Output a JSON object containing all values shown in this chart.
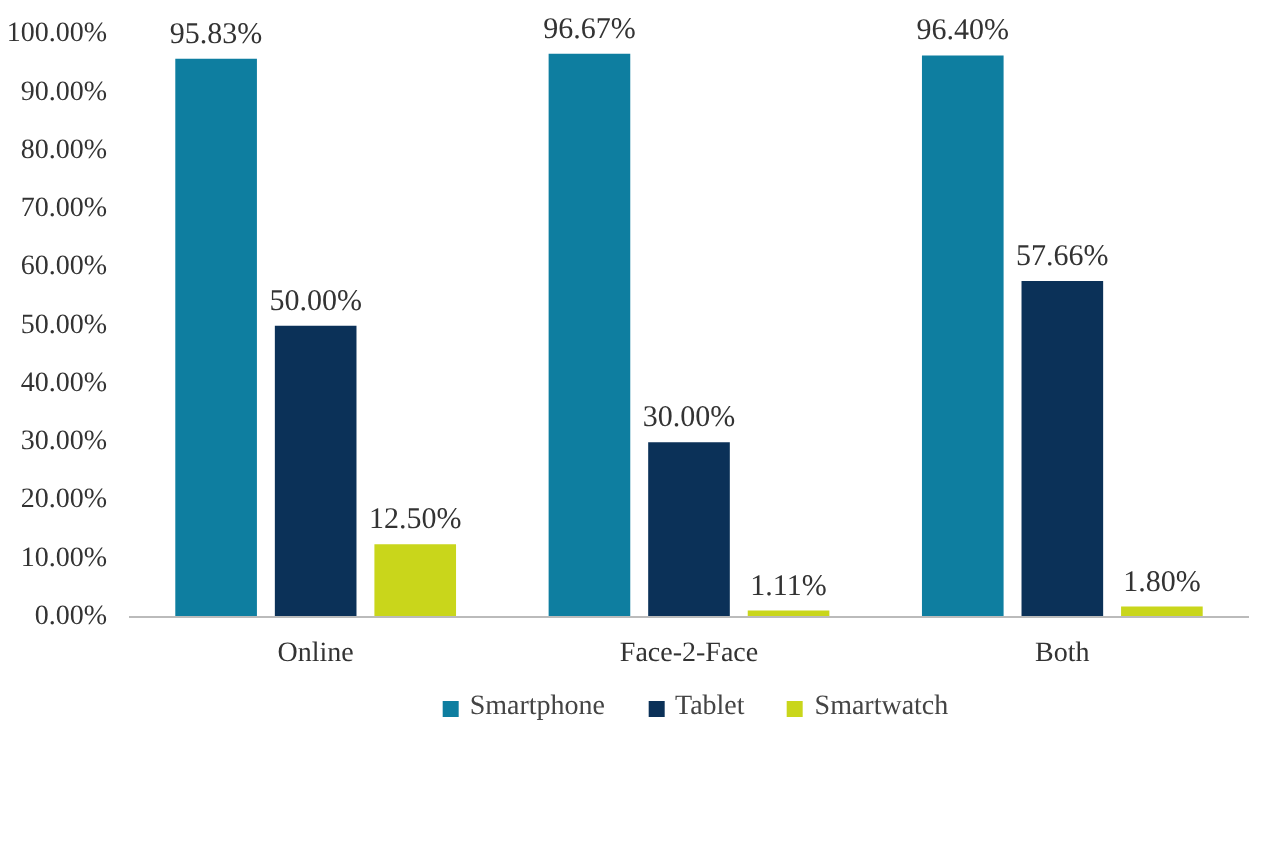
{
  "chart_data": {
    "type": "bar",
    "categories": [
      "Online",
      "Face-2-Face",
      "Both"
    ],
    "series": [
      {
        "name": "Smartphone",
        "color": "#0e7ea0",
        "values": [
          95.83,
          96.67,
          96.4
        ],
        "value_labels": [
          "95.83%",
          "96.67%",
          "96.40%"
        ]
      },
      {
        "name": "Tablet",
        "color": "#0b3158",
        "values": [
          50.0,
          30.0,
          57.66
        ],
        "value_labels": [
          "50.00%",
          "30.00%",
          "57.66%"
        ]
      },
      {
        "name": "Smartwatch",
        "color": "#c9d61b",
        "values": [
          12.5,
          1.11,
          1.8
        ],
        "value_labels": [
          "12.50%",
          "1.11%",
          "1.80%"
        ]
      }
    ],
    "ylim": [
      0,
      100
    ],
    "yticks": [
      {
        "value": 0,
        "label": "0.00%"
      },
      {
        "value": 10,
        "label": "10.00%"
      },
      {
        "value": 20,
        "label": "20.00%"
      },
      {
        "value": 30,
        "label": "30.00%"
      },
      {
        "value": 40,
        "label": "40.00%"
      },
      {
        "value": 50,
        "label": "50.00%"
      },
      {
        "value": 60,
        "label": "60.00%"
      },
      {
        "value": 70,
        "label": "70.00%"
      },
      {
        "value": 80,
        "label": "80.00%"
      },
      {
        "value": 90,
        "label": "90.00%"
      },
      {
        "value": 100,
        "label": "100.00%"
      }
    ],
    "grid": false,
    "legend": "bottom"
  }
}
